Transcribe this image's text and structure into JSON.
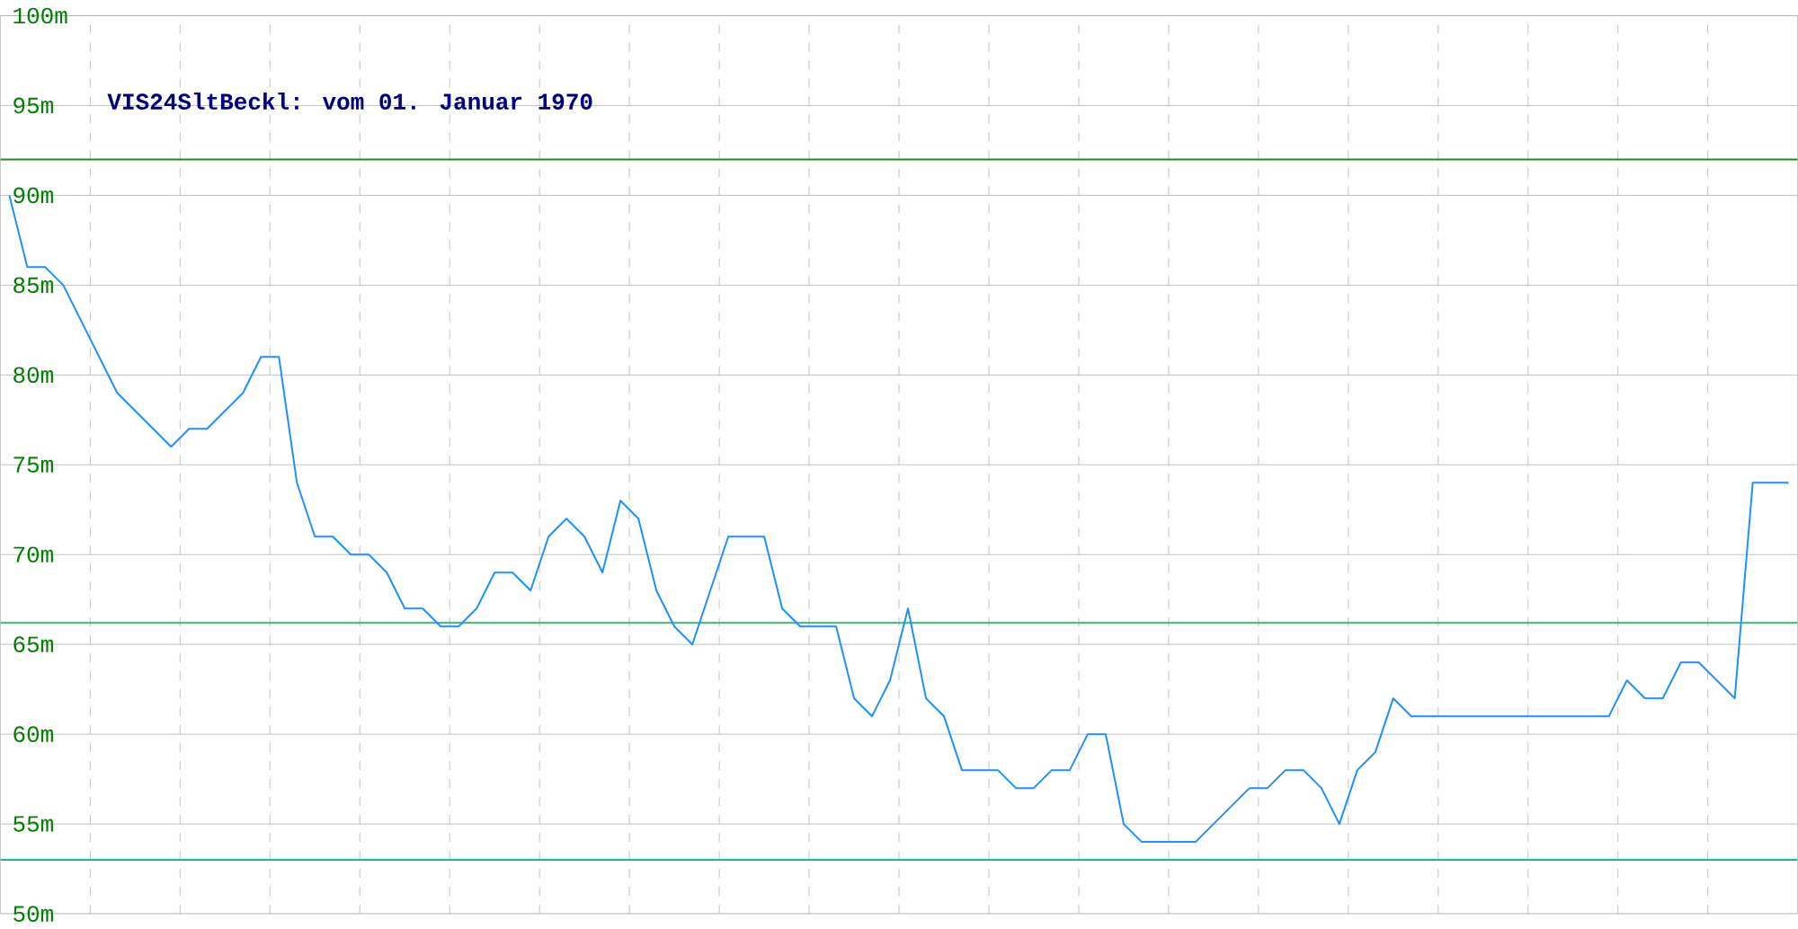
{
  "chart_data": {
    "type": "line",
    "title": "VIS24SltBeckl: vom 01. Januar 1970",
    "categories": [
      null,
      null,
      null,
      null,
      null,
      null,
      null,
      null,
      null,
      null,
      null,
      null,
      null,
      null,
      null,
      null,
      null,
      null,
      null,
      null,
      null,
      null,
      null,
      null,
      null,
      null,
      null,
      null,
      null,
      null,
      null,
      null,
      null,
      null,
      null,
      null,
      null,
      null,
      null,
      null,
      null,
      null,
      null,
      null,
      null,
      null,
      null,
      null,
      null,
      null,
      null,
      null,
      null,
      null,
      null,
      null,
      null,
      null,
      null,
      null,
      null,
      null,
      null,
      null,
      null,
      null,
      null,
      null,
      null,
      null,
      null,
      null,
      null,
      null,
      null,
      null,
      null,
      null,
      null,
      null,
      null,
      null,
      null,
      null,
      null,
      null,
      null,
      null,
      null,
      null,
      null,
      null,
      null,
      null,
      null,
      null,
      null,
      null,
      null,
      null
    ],
    "series": [
      {
        "color": "#1e90ff",
        "values": [
          90,
          86,
          86,
          85,
          83,
          81,
          79,
          78,
          77,
          76,
          77,
          77,
          78,
          79,
          81,
          81,
          74,
          71,
          71,
          70,
          70,
          69,
          67,
          67,
          66,
          66,
          67,
          69,
          69,
          68,
          71,
          72,
          71,
          69,
          73,
          72,
          68,
          66,
          65,
          68,
          71,
          71,
          71,
          67,
          66,
          66,
          66,
          62,
          61,
          63,
          67,
          62,
          61,
          58,
          58,
          58,
          57,
          57,
          58,
          58,
          60,
          60,
          55,
          54,
          54,
          54,
          54,
          55,
          56,
          57,
          57,
          58,
          58,
          57,
          55,
          58,
          59,
          62,
          61,
          61,
          61,
          61,
          61,
          61,
          61,
          61,
          61,
          61,
          61,
          61,
          63,
          62,
          62,
          64,
          64,
          63,
          62,
          74,
          74,
          74
        ]
      }
    ],
    "ylim": [
      50,
      100
    ],
    "yticks": [
      {
        "value": 50,
        "label": "50m"
      },
      {
        "value": 55,
        "label": "55m"
      },
      {
        "value": 60,
        "label": "60m"
      },
      {
        "value": 65,
        "label": "65m"
      },
      {
        "value": 70,
        "label": "70m"
      },
      {
        "value": 75,
        "label": "75m"
      },
      {
        "value": 80,
        "label": "80m"
      },
      {
        "value": 85,
        "label": "85m"
      },
      {
        "value": 90,
        "label": "90m"
      },
      {
        "value": 95,
        "label": "95m"
      },
      {
        "value": 100,
        "label": "100m"
      }
    ],
    "ref_lines": [
      {
        "axis": "y",
        "value": 92,
        "color": "#1f8c1f"
      },
      {
        "axis": "y",
        "value": 66.2,
        "color": "#3cb371"
      },
      {
        "axis": "y",
        "value": 53,
        "color": "#20b2aa"
      }
    ],
    "grid": true
  }
}
